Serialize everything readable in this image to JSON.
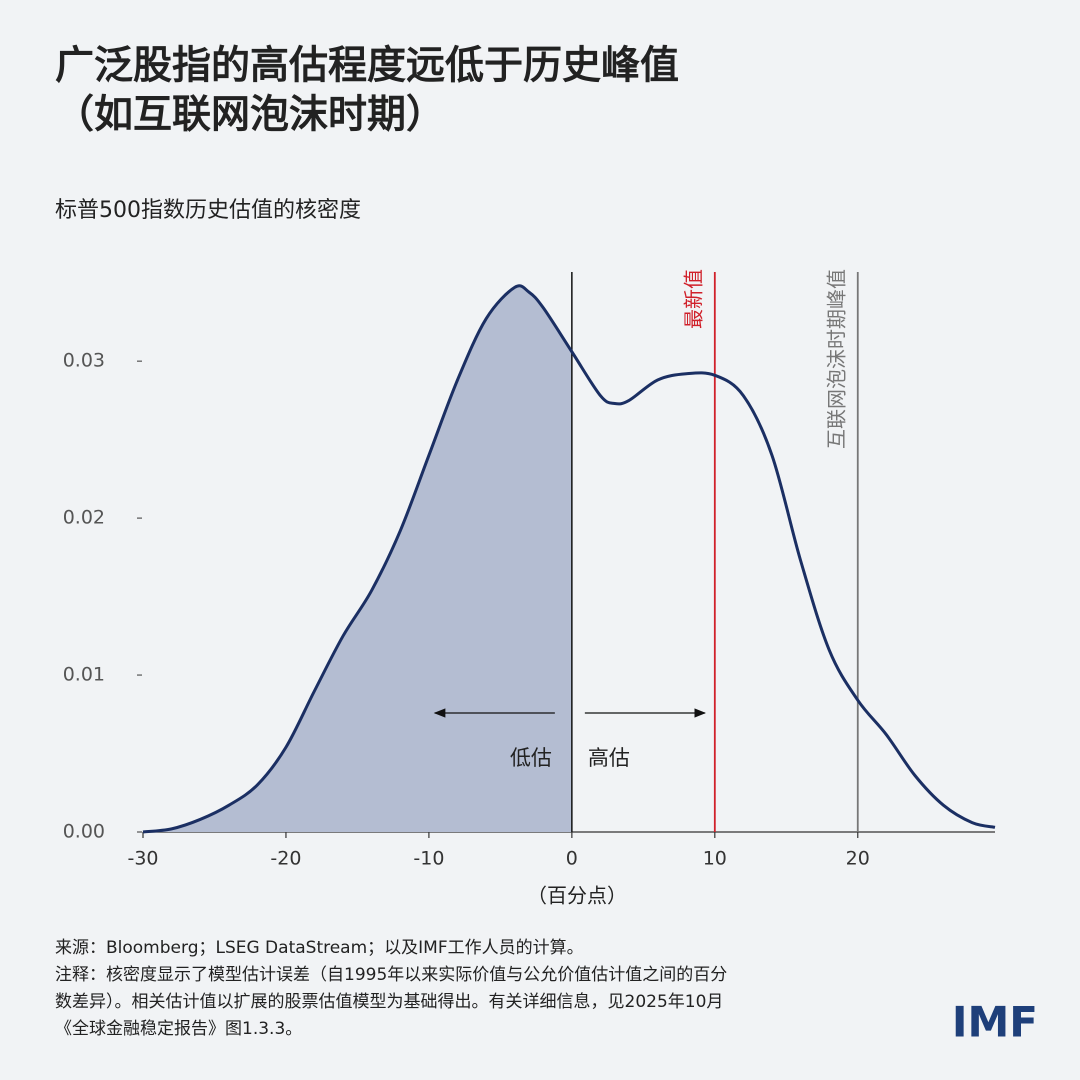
{
  "chart_data": {
    "type": "line",
    "title_lines": [
      "广泛股指的高估程度远低于历史峰值",
      "（如互联网泡沫时期）"
    ],
    "subtitle": "标普500指数历史估值的核密度",
    "x_label": "（百分点）",
    "x": [
      -30,
      -28,
      -26,
      -24,
      -22,
      -20,
      -18,
      -16,
      -14,
      -12,
      -10,
      -8,
      -6,
      -4,
      -3,
      -2,
      0,
      2,
      3,
      4,
      6,
      8,
      10,
      12,
      14,
      16,
      18,
      20,
      22,
      24,
      26,
      28,
      29.6
    ],
    "values": [
      0.0,
      0.0002,
      0.0008,
      0.0017,
      0.003,
      0.0054,
      0.009,
      0.0125,
      0.0154,
      0.0192,
      0.024,
      0.0288,
      0.0327,
      0.0347,
      0.0344,
      0.0334,
      0.0306,
      0.0278,
      0.0273,
      0.0275,
      0.0288,
      0.0292,
      0.0291,
      0.0278,
      0.024,
      0.0173,
      0.0116,
      0.0084,
      0.0062,
      0.0036,
      0.0017,
      0.0006,
      0.0003
    ],
    "color": "#1b2f63",
    "fill_color": "#b4bdd2",
    "xlim": [
      -30,
      29.6
    ],
    "ylim": [
      0,
      0.036
    ],
    "xticks": [
      -30,
      -20,
      -10,
      0,
      10,
      20
    ],
    "yticks": [
      {
        "value": 0,
        "label": "0.00"
      },
      {
        "value": 0.01,
        "label": "0.01"
      },
      {
        "value": 0.02,
        "label": "0.02"
      },
      {
        "value": 0.03,
        "label": "0.03"
      }
    ],
    "reference_lines": [
      {
        "x": 0,
        "color": "#111111",
        "fill_below": true
      },
      {
        "x": 10,
        "color": "#d0202a",
        "label": "最新值"
      },
      {
        "x": 20,
        "color": "#777777",
        "label": "互联网泡沫时期峰值"
      }
    ],
    "arrow_labels": [
      "低估",
      "高估"
    ],
    "notes": [
      "来源：Bloomberg；LSEG DataStream；以及IMF工作人员的计算。",
      "注释：核密度显示了模型估计误差（自1995年以来实际价值与公允价值估计值之间的百分",
      "数差异）。相关估计值以扩展的股票估值模型为基础得出。有关详细信息，见2025年10月",
      "《全球金融稳定报告》图1.3.3。"
    ],
    "logo": "IMF"
  }
}
